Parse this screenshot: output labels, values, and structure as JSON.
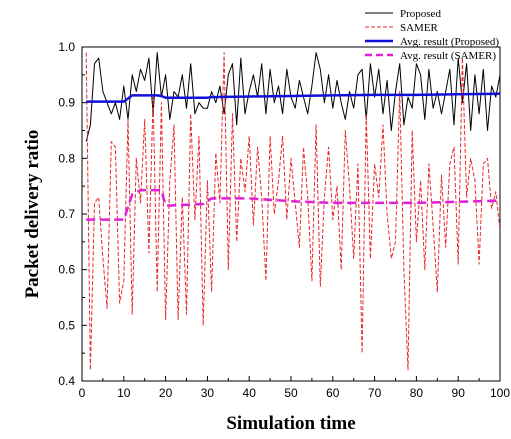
{
  "chart_data": {
    "type": "line",
    "title": "",
    "xlabel": "Simulation time",
    "ylabel": "Packet delivery ratio",
    "xlim": [
      0,
      100
    ],
    "ylim": [
      0.4,
      1.0
    ],
    "x_ticks": [
      0,
      10,
      20,
      30,
      40,
      50,
      60,
      70,
      80,
      90,
      100
    ],
    "y_ticks": [
      0.4,
      0.5,
      0.6,
      0.7,
      0.8,
      0.9,
      1.0
    ],
    "x_tick_labels": [
      "0",
      "10",
      "20",
      "30",
      "40",
      "50",
      "60",
      "70",
      "80",
      "90",
      "100"
    ],
    "y_tick_labels": [
      "0.4",
      "0.5",
      "0.6",
      "0.7",
      "0.8",
      "0.9",
      "1.0"
    ],
    "grid": false,
    "legend_position": "top-right",
    "series": [
      {
        "name": "Proposed",
        "color": "#000000",
        "style": "solid",
        "x": [
          1,
          2,
          3,
          4,
          5,
          6,
          7,
          8,
          9,
          10,
          11,
          12,
          13,
          14,
          15,
          16,
          17,
          18,
          19,
          20,
          21,
          22,
          23,
          24,
          25,
          26,
          27,
          28,
          29,
          30,
          31,
          32,
          33,
          34,
          35,
          36,
          37,
          38,
          39,
          40,
          41,
          42,
          43,
          44,
          45,
          46,
          47,
          48,
          49,
          50,
          51,
          52,
          53,
          54,
          55,
          56,
          57,
          58,
          59,
          60,
          61,
          62,
          63,
          64,
          65,
          66,
          67,
          68,
          69,
          70,
          71,
          72,
          73,
          74,
          75,
          76,
          77,
          78,
          79,
          80,
          81,
          82,
          83,
          84,
          85,
          86,
          87,
          88,
          89,
          90,
          91,
          92,
          93,
          94,
          95,
          96,
          97,
          98,
          99,
          100
        ],
        "y": [
          0.83,
          0.86,
          0.97,
          0.98,
          0.92,
          0.9,
          0.88,
          0.9,
          0.87,
          0.93,
          0.87,
          0.95,
          0.92,
          0.96,
          0.94,
          0.98,
          0.88,
          0.99,
          0.91,
          0.95,
          0.87,
          0.92,
          0.91,
          0.95,
          0.89,
          0.97,
          0.88,
          0.9,
          0.89,
          0.89,
          0.92,
          0.9,
          0.93,
          0.88,
          0.95,
          0.97,
          0.86,
          0.98,
          0.88,
          0.92,
          0.95,
          0.91,
          0.97,
          0.88,
          0.96,
          0.9,
          0.93,
          0.88,
          0.96,
          0.91,
          0.89,
          0.94,
          0.91,
          0.88,
          0.93,
          0.99,
          0.96,
          0.9,
          0.95,
          0.89,
          0.94,
          0.9,
          0.87,
          0.92,
          0.89,
          0.95,
          0.96,
          0.87,
          0.97,
          0.91,
          0.96,
          0.88,
          0.94,
          0.85,
          0.92,
          0.97,
          0.86,
          0.91,
          0.89,
          0.97,
          0.95,
          0.87,
          0.96,
          0.89,
          0.92,
          0.88,
          0.92,
          0.96,
          0.86,
          0.98,
          0.9,
          0.97,
          0.85,
          0.95,
          0.88,
          0.96,
          0.85,
          0.93,
          0.91,
          0.95
        ]
      },
      {
        "name": "SAMER",
        "color": "#e8272a",
        "style": "dashed",
        "x": [
          1,
          2,
          3,
          4,
          5,
          6,
          7,
          8,
          9,
          10,
          11,
          12,
          13,
          14,
          15,
          16,
          17,
          18,
          19,
          20,
          21,
          22,
          23,
          24,
          25,
          26,
          27,
          28,
          29,
          30,
          31,
          32,
          33,
          34,
          35,
          36,
          37,
          38,
          39,
          40,
          41,
          42,
          43,
          44,
          45,
          46,
          47,
          48,
          49,
          50,
          51,
          52,
          53,
          54,
          55,
          56,
          57,
          58,
          59,
          60,
          61,
          62,
          63,
          64,
          65,
          66,
          67,
          68,
          69,
          70,
          71,
          72,
          73,
          74,
          75,
          76,
          77,
          78,
          79,
          80,
          81,
          82,
          83,
          84,
          85,
          86,
          87,
          88,
          89,
          90,
          91,
          92,
          93,
          94,
          95,
          96,
          97,
          98,
          99,
          100
        ],
        "y": [
          0.99,
          0.42,
          0.72,
          0.73,
          0.62,
          0.53,
          0.83,
          0.82,
          0.54,
          0.58,
          0.87,
          0.52,
          0.8,
          0.72,
          0.87,
          0.63,
          0.91,
          0.56,
          0.9,
          0.51,
          0.76,
          0.86,
          0.51,
          0.73,
          0.52,
          0.88,
          0.69,
          0.84,
          0.5,
          0.76,
          0.56,
          0.81,
          0.72,
          0.99,
          0.6,
          0.88,
          0.65,
          0.8,
          0.74,
          0.84,
          0.68,
          0.82,
          0.73,
          0.58,
          0.84,
          0.7,
          0.76,
          0.84,
          0.69,
          0.8,
          0.72,
          0.64,
          0.82,
          0.73,
          0.58,
          0.86,
          0.57,
          0.73,
          0.82,
          0.69,
          0.75,
          0.6,
          0.85,
          0.75,
          0.62,
          0.79,
          0.45,
          0.88,
          0.62,
          0.79,
          0.73,
          0.86,
          0.7,
          0.62,
          0.65,
          0.92,
          0.6,
          0.42,
          0.85,
          0.65,
          0.76,
          0.6,
          0.79,
          0.68,
          0.56,
          0.77,
          0.64,
          0.79,
          0.82,
          0.61,
          0.98,
          0.73,
          0.8,
          0.76,
          0.61,
          0.79,
          0.8,
          0.71,
          0.74,
          0.67
        ]
      },
      {
        "name": "Avg. result (Proposed)",
        "color": "#1010d8",
        "style": "solid-thick",
        "x": [
          1,
          10,
          12,
          18,
          19,
          20,
          30,
          31,
          40,
          50,
          60,
          70,
          80,
          90,
          100
        ],
        "y": [
          0.902,
          0.902,
          0.913,
          0.913,
          0.912,
          0.909,
          0.909,
          0.91,
          0.911,
          0.912,
          0.913,
          0.914,
          0.914,
          0.915,
          0.916
        ]
      },
      {
        "name": "Avg. result (SAMER)",
        "color": "#e020d8",
        "style": "dashed-thick",
        "x": [
          1,
          10,
          12,
          14,
          19,
          20,
          29,
          31,
          40,
          50,
          60,
          70,
          80,
          90,
          100
        ],
        "y": [
          0.69,
          0.69,
          0.735,
          0.743,
          0.743,
          0.715,
          0.718,
          0.728,
          0.728,
          0.723,
          0.72,
          0.72,
          0.72,
          0.722,
          0.724
        ]
      }
    ]
  }
}
